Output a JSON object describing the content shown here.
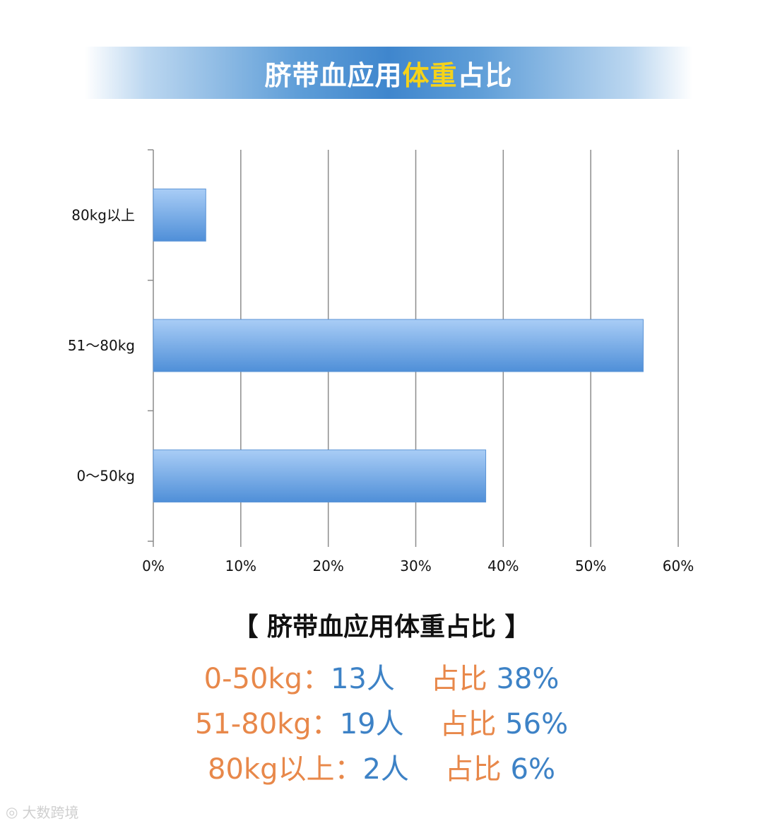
{
  "banner": {
    "title_part1": "脐带血应用",
    "title_highlight": "体重",
    "title_part2": "占比",
    "highlight_color": "#f5d21a"
  },
  "chart_data": {
    "type": "bar",
    "orientation": "horizontal",
    "categories": [
      "0～50kg",
      "51～80kg",
      "80kg以上"
    ],
    "values": [
      38,
      56,
      6
    ],
    "xlim": [
      0,
      60
    ],
    "x_ticks": [
      "0%",
      "10%",
      "20%",
      "30%",
      "40%",
      "50%",
      "60%"
    ],
    "grid": true,
    "bar_color": "#6ea8e6"
  },
  "summary": {
    "title": "【 脐带血应用体重占比 】",
    "rows": [
      {
        "range": "0-50kg：",
        "count": "13人",
        "label": "占比",
        "pct": " 38%"
      },
      {
        "range": "51-80kg：",
        "count": "19人",
        "label": "占比",
        "pct": " 56%"
      },
      {
        "range": "80kg以上：",
        "count": "2人",
        "label": "占比",
        "pct": " 6%"
      }
    ],
    "range_color": "#e8884a",
    "value_color": "#3d82c6"
  },
  "watermark": {
    "text": "大数跨境"
  }
}
